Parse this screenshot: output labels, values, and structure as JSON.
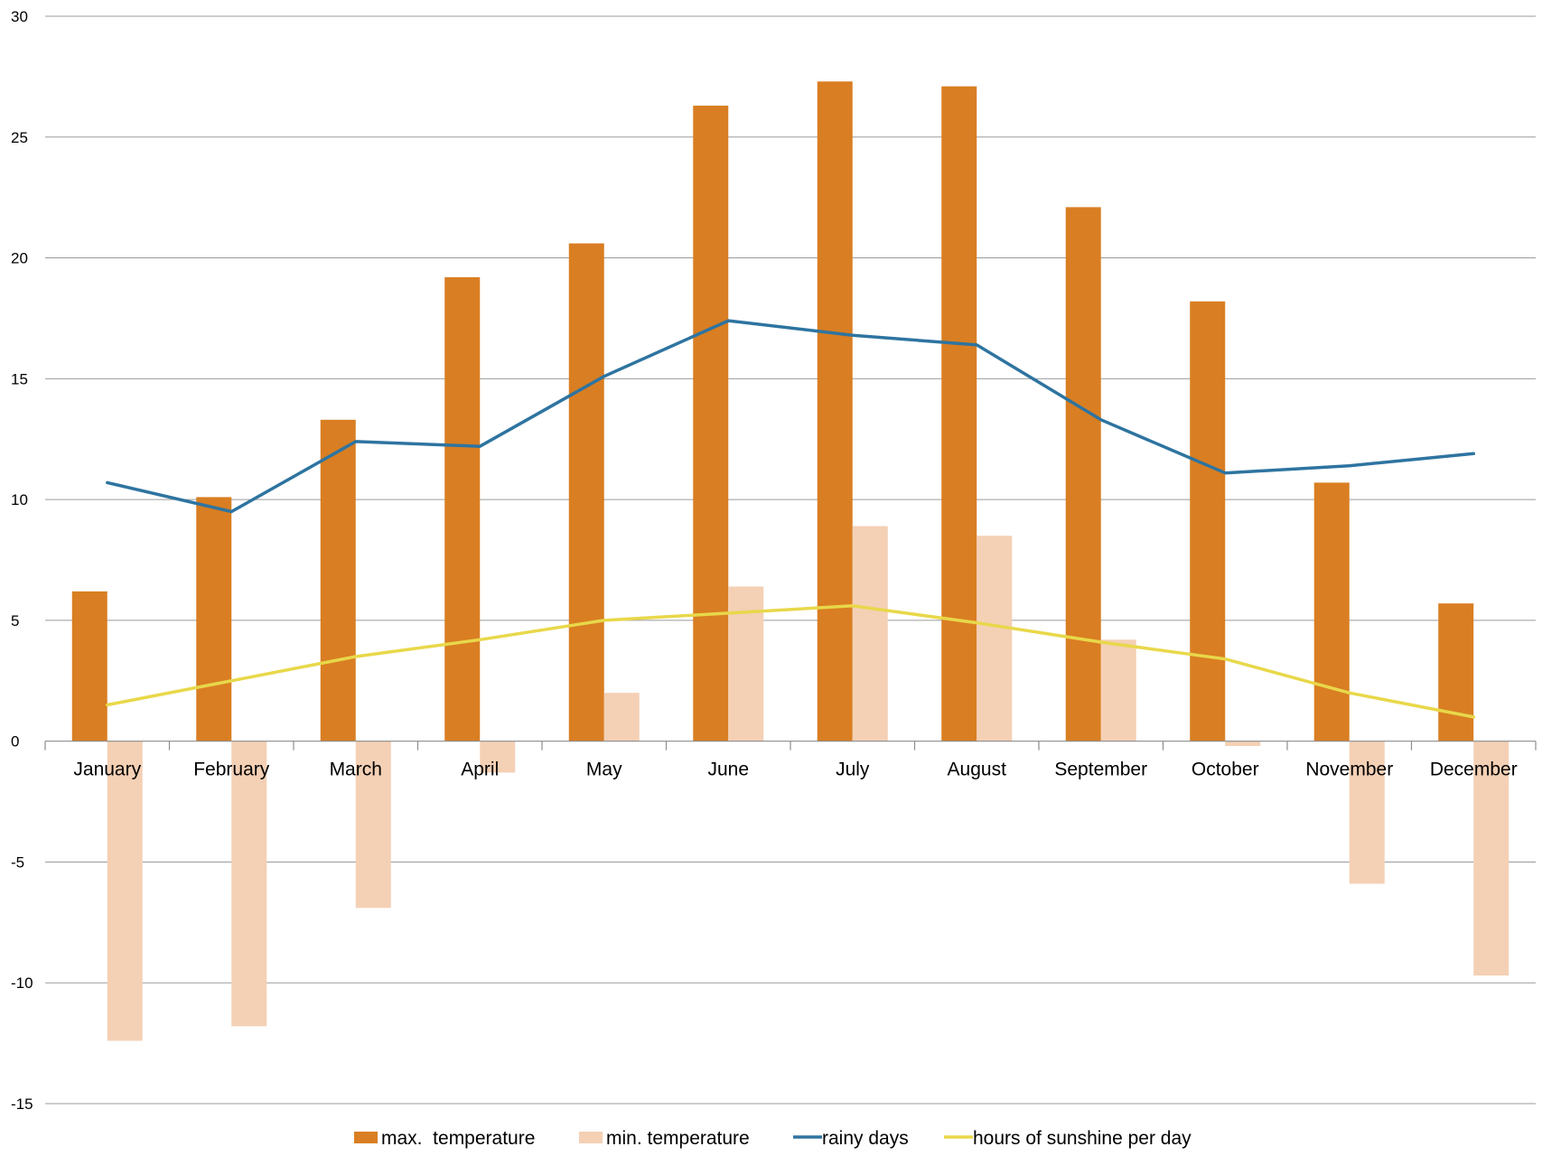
{
  "chart_data": {
    "type": "bar",
    "categories": [
      "January",
      "February",
      "March",
      "April",
      "May",
      "June",
      "July",
      "August",
      "September",
      "October",
      "November",
      "December"
    ],
    "series": [
      {
        "name": "max.  temperature",
        "type": "bar",
        "color": "#D97E22",
        "values": [
          6.2,
          10.1,
          13.3,
          19.2,
          20.6,
          26.3,
          27.3,
          27.1,
          22.1,
          18.2,
          10.7,
          5.7
        ]
      },
      {
        "name": "min. temperature",
        "type": "bar",
        "color": "#F4D0B5",
        "values": [
          -12.4,
          -11.8,
          -6.9,
          -1.3,
          2.0,
          6.4,
          8.9,
          8.5,
          4.2,
          -0.2,
          -5.9,
          -9.7
        ]
      },
      {
        "name": "rainy days",
        "type": "line",
        "color": "#2E74A0",
        "values": [
          10.7,
          9.5,
          12.4,
          12.2,
          15.1,
          17.4,
          16.8,
          16.4,
          13.3,
          11.1,
          11.4,
          11.9
        ]
      },
      {
        "name": "hours of sunshine per day",
        "type": "line",
        "color": "#E8D84A",
        "values": [
          1.5,
          2.5,
          3.5,
          4.2,
          5.0,
          5.3,
          5.6,
          4.9,
          4.1,
          3.4,
          2.0,
          1.0
        ]
      }
    ],
    "ylim": [
      -15,
      30
    ],
    "yticks": [
      -15,
      -10,
      -5,
      0,
      5,
      10,
      15,
      20,
      25,
      30
    ],
    "title": "",
    "xlabel": "",
    "ylabel": "",
    "grid": true,
    "legend_position": "bottom"
  }
}
